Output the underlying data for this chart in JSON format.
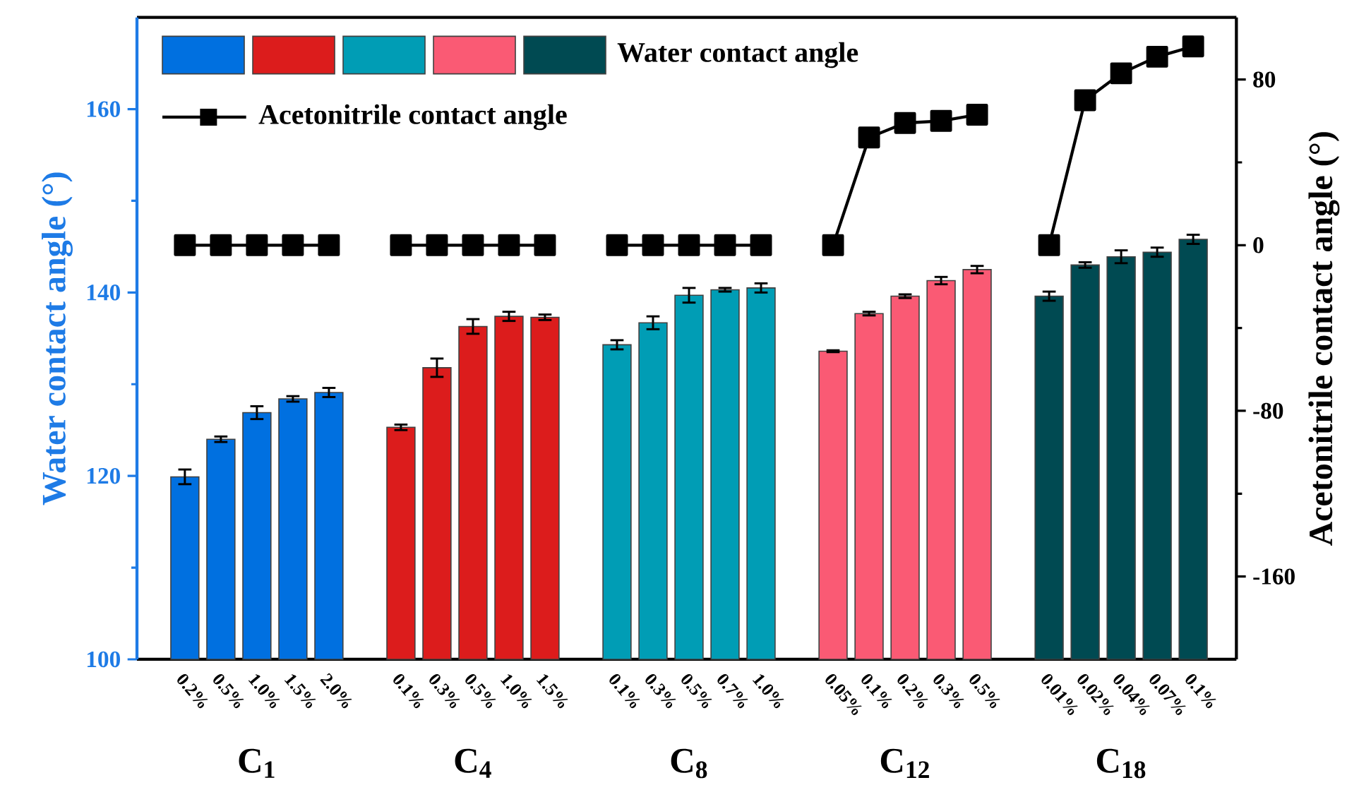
{
  "chart_data": {
    "type": "bar",
    "xlabel": null,
    "ylabel": "Water contact angle (°)",
    "y2label": "Acetonitrile contact angle (°)",
    "categories": [
      "0.2%",
      "0.5%",
      "1.0%",
      "1.5%",
      "2.0%",
      null,
      "0.1%",
      "0.3%",
      "0.5%",
      "1.0%",
      "1.5%",
      null,
      "0.1%",
      "0.3%",
      "0.5%",
      "0.7%",
      "1.0%",
      null,
      "0.05%",
      "0.1%",
      "0.2%",
      "0.3%",
      "0.5%",
      null,
      "0.01%",
      "0.02%",
      "0.04%",
      "0.07%",
      "0.1%"
    ],
    "series": [
      {
        "color": "#0070e0",
        "values": [
          119.9,
          124.0,
          126.9,
          128.4,
          129.1,
          null,
          null,
          null,
          null,
          null,
          null,
          null,
          null,
          null,
          null,
          null,
          null,
          null,
          null,
          null,
          null,
          null,
          null,
          null,
          null,
          null,
          null,
          null,
          null
        ],
        "errors": [
          0.8,
          0.3,
          0.7,
          0.3,
          0.5,
          null,
          null,
          null,
          null,
          null,
          null,
          null,
          null,
          null,
          null,
          null,
          null,
          null,
          null,
          null,
          null,
          null,
          null,
          null,
          null,
          null,
          null,
          null,
          null
        ]
      },
      {
        "color": "#dc1c1c",
        "values": [
          null,
          null,
          null,
          null,
          null,
          null,
          125.3,
          131.8,
          136.3,
          137.4,
          137.3,
          null,
          null,
          null,
          null,
          null,
          null,
          null,
          null,
          null,
          null,
          null,
          null,
          null,
          null,
          null,
          null,
          null,
          null
        ],
        "errors": [
          null,
          null,
          null,
          null,
          null,
          null,
          0.3,
          1.0,
          0.8,
          0.5,
          0.3,
          null,
          null,
          null,
          null,
          null,
          null,
          null,
          null,
          null,
          null,
          null,
          null,
          null,
          null,
          null,
          null,
          null,
          null
        ]
      },
      {
        "color": "#009db5",
        "values": [
          null,
          null,
          null,
          null,
          null,
          null,
          null,
          null,
          null,
          null,
          null,
          null,
          134.3,
          136.7,
          139.7,
          140.3,
          140.5,
          null,
          null,
          null,
          null,
          null,
          null,
          null,
          null,
          null,
          null,
          null,
          null
        ],
        "errors": [
          null,
          null,
          null,
          null,
          null,
          null,
          null,
          null,
          null,
          null,
          null,
          null,
          0.5,
          0.7,
          0.8,
          0.2,
          0.5,
          null,
          null,
          null,
          null,
          null,
          null,
          null,
          null,
          null,
          null,
          null,
          null
        ]
      },
      {
        "color": "#fa5a74",
        "values": [
          null,
          null,
          null,
          null,
          null,
          null,
          null,
          null,
          null,
          null,
          null,
          null,
          null,
          null,
          null,
          null,
          null,
          null,
          133.6,
          137.7,
          139.6,
          141.3,
          142.5,
          null,
          null,
          null,
          null,
          null,
          null
        ],
        "errors": [
          null,
          null,
          null,
          null,
          null,
          null,
          null,
          null,
          null,
          null,
          null,
          null,
          null,
          null,
          null,
          null,
          null,
          null,
          0.1,
          0.2,
          0.2,
          0.4,
          0.4,
          null,
          null,
          null,
          null,
          null,
          null
        ]
      },
      {
        "name": "Water contact angle",
        "color": "#004a52",
        "values": [
          null,
          null,
          null,
          null,
          null,
          null,
          null,
          null,
          null,
          null,
          null,
          null,
          null,
          null,
          null,
          null,
          null,
          null,
          null,
          null,
          null,
          null,
          null,
          null,
          139.6,
          143.0,
          143.9,
          144.4,
          145.8
        ],
        "errors": [
          null,
          null,
          null,
          null,
          null,
          null,
          null,
          null,
          null,
          null,
          null,
          null,
          null,
          null,
          null,
          null,
          null,
          null,
          null,
          null,
          null,
          null,
          null,
          null,
          0.5,
          0.3,
          0.7,
          0.5,
          0.5
        ]
      },
      {
        "name": "Acetonitrile contact angle",
        "type": "line",
        "axis": "y2",
        "color": "#000000",
        "marker": "square",
        "line_style": "solid",
        "values": [
          0,
          0,
          0,
          0,
          0,
          null,
          0,
          0,
          0,
          0,
          0,
          null,
          0,
          0,
          0,
          0,
          0,
          null,
          0,
          52,
          59,
          60,
          63,
          null,
          0,
          70,
          83,
          91,
          96
        ]
      }
    ],
    "ylim": [
      100,
      170
    ],
    "yticks": [
      100,
      120,
      140,
      160
    ],
    "y2lim": [
      -200,
      110
    ],
    "y2ticks": [
      -160,
      -80,
      0,
      80
    ],
    "legend": "top left",
    "annotations": [
      "C$_{1}$",
      "C$_{4}$",
      "C$_{8}$",
      "C$_{12}$",
      "C$_{18}$"
    ]
  }
}
